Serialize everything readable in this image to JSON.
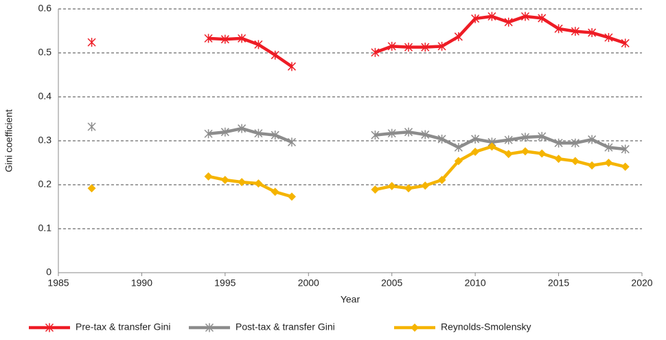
{
  "chart_data": {
    "type": "line",
    "x_label": "Year",
    "y_label": "Gini coefficient",
    "x": [
      1987,
      1988,
      1989,
      1990,
      1991,
      1992,
      1993,
      1994,
      1995,
      1996,
      1997,
      1998,
      1999,
      2000,
      2001,
      2002,
      2003,
      2004,
      2005,
      2006,
      2007,
      2008,
      2009,
      2010,
      2011,
      2012,
      2013,
      2014,
      2015,
      2016,
      2017,
      2018,
      2019
    ],
    "series": [
      {
        "name": "Pre-tax & transfer Gini",
        "color": "#ee1c25",
        "marker": "star",
        "values": [
          0.524,
          null,
          null,
          null,
          null,
          null,
          null,
          0.533,
          0.531,
          0.533,
          0.519,
          0.495,
          0.469,
          null,
          null,
          null,
          null,
          0.501,
          0.515,
          0.513,
          0.513,
          0.515,
          0.537,
          0.578,
          0.583,
          0.57,
          0.583,
          0.579,
          0.555,
          0.549,
          0.546,
          0.535,
          0.522
        ]
      },
      {
        "name": "Post-tax & transfer Gini",
        "color": "#8c8c8c",
        "marker": "star",
        "values": [
          0.332,
          null,
          null,
          null,
          null,
          null,
          null,
          0.316,
          0.32,
          0.328,
          0.317,
          0.313,
          0.297,
          null,
          null,
          null,
          null,
          0.313,
          0.317,
          0.32,
          0.314,
          0.304,
          0.285,
          0.304,
          0.297,
          0.302,
          0.308,
          0.31,
          0.295,
          0.295,
          0.303,
          0.285,
          0.281
        ]
      },
      {
        "name": "Reynolds-Smolensky",
        "color": "#f5b400",
        "marker": "diamond",
        "values": [
          0.192,
          null,
          null,
          null,
          null,
          null,
          null,
          0.219,
          0.211,
          0.206,
          0.203,
          0.184,
          0.173,
          null,
          null,
          null,
          null,
          0.189,
          0.197,
          0.192,
          0.198,
          0.211,
          0.254,
          0.275,
          0.287,
          0.27,
          0.276,
          0.271,
          0.259,
          0.254,
          0.244,
          0.25,
          0.241
        ]
      }
    ],
    "xlim": [
      1985,
      2020
    ],
    "xticks": [
      1985,
      1990,
      1995,
      2000,
      2005,
      2010,
      2015,
      2020
    ],
    "ylim": [
      0,
      0.6
    ],
    "yticks": [
      0,
      0.1,
      0.2,
      0.3,
      0.4,
      0.5,
      0.6
    ],
    "grid": true,
    "legend": "bottom"
  }
}
